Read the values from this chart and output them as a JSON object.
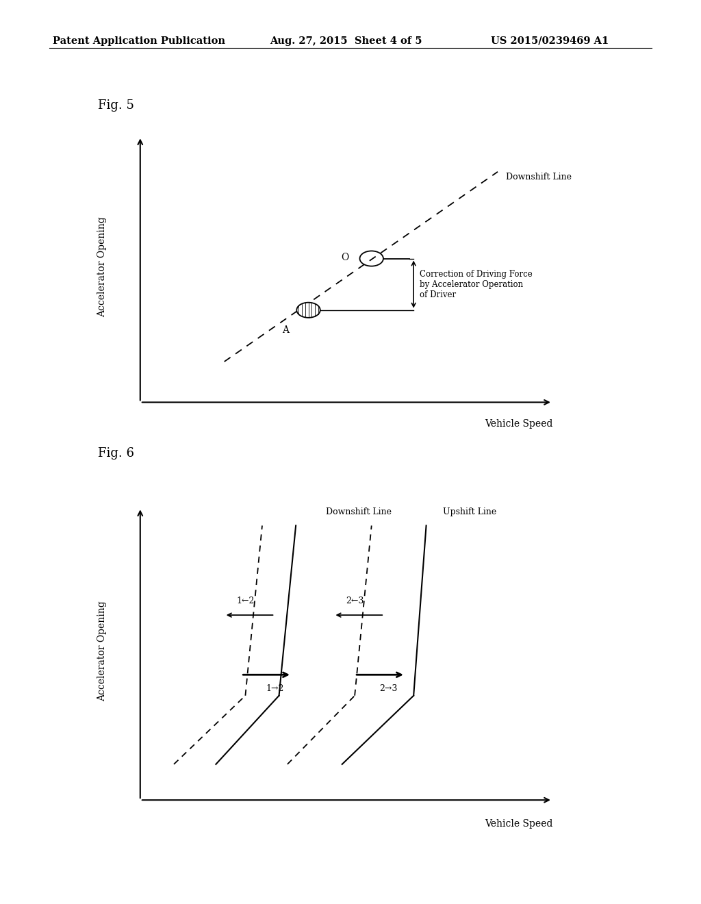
{
  "bg_color": "#ffffff",
  "header_left": "Patent Application Publication",
  "header_mid": "Aug. 27, 2015  Sheet 4 of 5",
  "header_right": "US 2015/0239469 A1",
  "fig5_label": "Fig. 5",
  "fig6_label": "Fig. 6",
  "fig5_xlabel": "Vehicle Speed",
  "fig5_ylabel": "Accelerator Opening",
  "fig5_downshift_label": "Downshift Line",
  "fig5_correction_label": "Correction of Driving Force\nby Accelerator Operation\nof Driver",
  "fig5_point_O": "O",
  "fig5_point_A": "A",
  "fig6_xlabel": "Vehicle Speed",
  "fig6_ylabel": "Accelerator Opening",
  "fig6_downshift_label": "Downshift Line",
  "fig6_upshift_label": "Upshift Line",
  "fig6_label_12down": "1←2",
  "fig6_label_23down": "2←3",
  "fig6_label_12up": "1→2",
  "fig6_label_23up": "2→3"
}
